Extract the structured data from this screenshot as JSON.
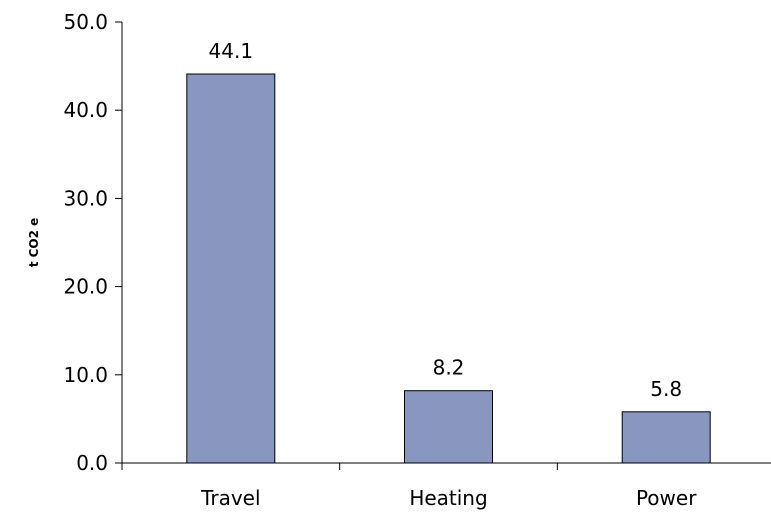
{
  "chart_data": {
    "type": "bar",
    "title": "",
    "xlabel": "",
    "ylabel": "t CO2 e",
    "categories": [
      "Travel",
      "Heating",
      "Power"
    ],
    "values": [
      44.1,
      8.2,
      5.8
    ],
    "value_labels": [
      "44.1",
      "8.2",
      "5.8"
    ],
    "ylim": [
      0,
      50
    ],
    "yticks": [
      0,
      10,
      20,
      30,
      40,
      50
    ],
    "ytick_labels": [
      "0.0",
      "10.0",
      "20.0",
      "30.0",
      "40.0",
      "50.0"
    ],
    "grid": false,
    "legend": "none",
    "colors": {
      "bar_fill": "#8896C0",
      "bar_stroke": "#000000",
      "axis": "#000000"
    }
  }
}
